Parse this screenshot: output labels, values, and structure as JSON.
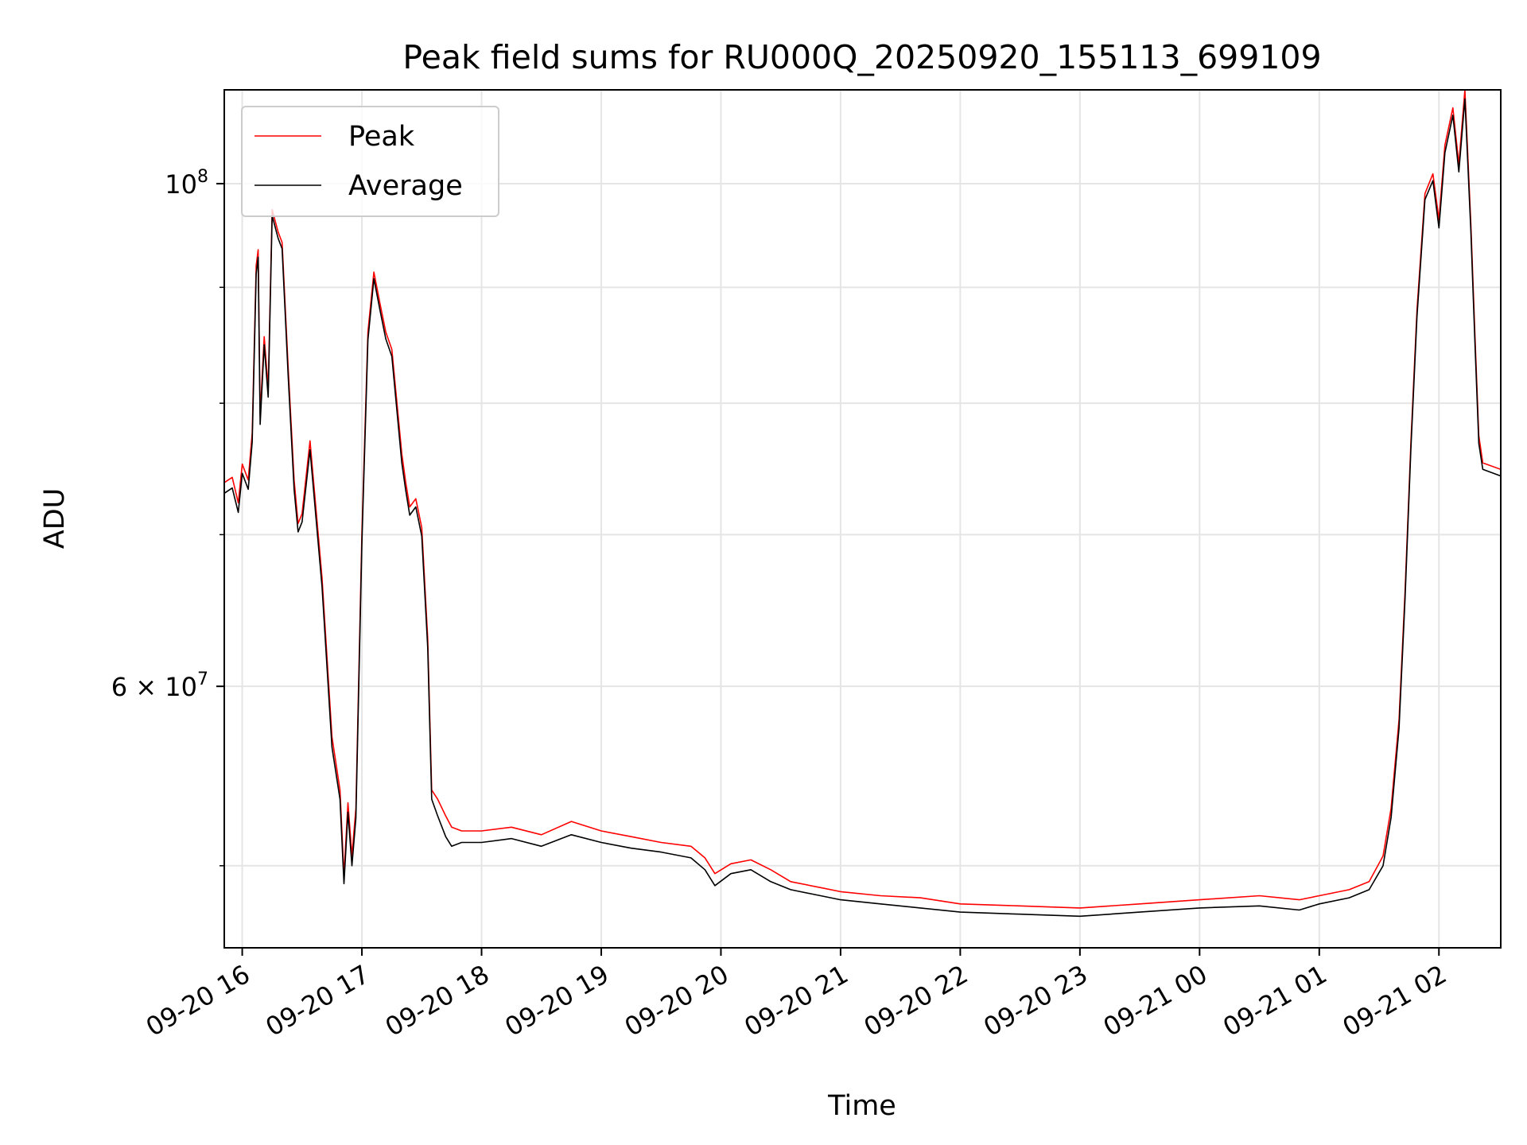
{
  "chart_data": {
    "type": "line",
    "title": "Peak field sums for RU000Q_20250920_155113_699109",
    "xlabel": "Time",
    "ylabel": "ADU",
    "x_axis": {
      "type": "time",
      "range": [
        "2025-09-20 15:51",
        "2025-09-21 02:31"
      ],
      "ticks": [
        "2025-09-20 16:00",
        "2025-09-20 17:00",
        "2025-09-20 18:00",
        "2025-09-20 19:00",
        "2025-09-20 20:00",
        "2025-09-20 21:00",
        "2025-09-20 22:00",
        "2025-09-20 23:00",
        "2025-09-21 00:00",
        "2025-09-21 01:00",
        "2025-09-21 02:00"
      ],
      "tick_labels": [
        "09-20 16",
        "09-20 17",
        "09-20 18",
        "09-20 19",
        "09-20 20",
        "09-20 21",
        "09-20 22",
        "09-20 23",
        "09-21 00",
        "09-21 01",
        "09-21 02"
      ]
    },
    "y_axis": {
      "scale": "log",
      "range": [
        46000000,
        110000000
      ],
      "major_ticks": [
        60000000,
        100000000
      ],
      "major_tick_labels": [
        {
          "mantissa": "6",
          "times": "×",
          "base": "10",
          "exp": "7"
        },
        {
          "mantissa": "",
          "times": "",
          "base": "10",
          "exp": "8"
        }
      ],
      "minor_ticks": [
        50000000,
        70000000,
        80000000,
        90000000
      ]
    },
    "grid": true,
    "legend": {
      "position": "top-left"
    },
    "series": [
      {
        "name": "Peak",
        "color": "#ff0000",
        "points": [
          [
            "2025-09-20 15:51",
            73800000
          ],
          [
            "2025-09-20 15:55",
            74200000
          ],
          [
            "2025-09-20 15:58",
            72300000
          ],
          [
            "2025-09-20 16:00",
            75200000
          ],
          [
            "2025-09-20 16:03",
            74000000
          ],
          [
            "2025-09-20 16:05",
            77600000
          ],
          [
            "2025-09-20 16:07",
            92000000
          ],
          [
            "2025-09-20 16:08",
            93500000
          ],
          [
            "2025-09-20 16:09",
            79000000
          ],
          [
            "2025-09-20 16:11",
            85600000
          ],
          [
            "2025-09-20 16:13",
            81200000
          ],
          [
            "2025-09-20 16:15",
            97400000
          ],
          [
            "2025-09-20 16:18",
            95200000
          ],
          [
            "2025-09-20 16:20",
            94200000
          ],
          [
            "2025-09-20 16:23",
            83000000
          ],
          [
            "2025-09-20 16:26",
            74000000
          ],
          [
            "2025-09-20 16:28",
            70800000
          ],
          [
            "2025-09-20 16:30",
            71500000
          ],
          [
            "2025-09-20 16:34",
            77000000
          ],
          [
            "2025-09-20 16:40",
            67000000
          ],
          [
            "2025-09-20 16:45",
            57000000
          ],
          [
            "2025-09-20 16:49",
            54000000
          ],
          [
            "2025-09-20 16:51",
            49500000
          ],
          [
            "2025-09-20 16:53",
            53300000
          ],
          [
            "2025-09-20 16:55",
            50500000
          ],
          [
            "2025-09-20 16:57",
            53000000
          ],
          [
            "2025-09-20 17:00",
            70000000
          ],
          [
            "2025-09-20 17:03",
            86000000
          ],
          [
            "2025-09-20 17:06",
            91400000
          ],
          [
            "2025-09-20 17:09",
            88600000
          ],
          [
            "2025-09-20 17:12",
            86000000
          ],
          [
            "2025-09-20 17:15",
            84500000
          ],
          [
            "2025-09-20 17:20",
            76000000
          ],
          [
            "2025-09-20 17:22",
            73800000
          ],
          [
            "2025-09-20 17:24",
            72000000
          ],
          [
            "2025-09-20 17:27",
            72600000
          ],
          [
            "2025-09-20 17:30",
            70500000
          ],
          [
            "2025-09-20 17:33",
            63000000
          ],
          [
            "2025-09-20 17:35",
            54000000
          ],
          [
            "2025-09-20 17:38",
            53500000
          ],
          [
            "2025-09-20 17:42",
            52600000
          ],
          [
            "2025-09-20 17:45",
            52000000
          ],
          [
            "2025-09-20 17:50",
            51800000
          ],
          [
            "2025-09-20 18:00",
            51800000
          ],
          [
            "2025-09-20 18:15",
            52000000
          ],
          [
            "2025-09-20 18:30",
            51600000
          ],
          [
            "2025-09-20 18:45",
            52300000
          ],
          [
            "2025-09-20 19:00",
            51800000
          ],
          [
            "2025-09-20 19:15",
            51500000
          ],
          [
            "2025-09-20 19:30",
            51200000
          ],
          [
            "2025-09-20 19:45",
            51000000
          ],
          [
            "2025-09-20 19:52",
            50400000
          ],
          [
            "2025-09-20 19:57",
            49600000
          ],
          [
            "2025-09-20 20:05",
            50100000
          ],
          [
            "2025-09-20 20:15",
            50300000
          ],
          [
            "2025-09-20 20:25",
            49800000
          ],
          [
            "2025-09-20 20:35",
            49200000
          ],
          [
            "2025-09-20 20:50",
            48900000
          ],
          [
            "2025-09-20 21:00",
            48700000
          ],
          [
            "2025-09-20 21:20",
            48500000
          ],
          [
            "2025-09-20 21:40",
            48400000
          ],
          [
            "2025-09-20 22:00",
            48100000
          ],
          [
            "2025-09-20 22:30",
            48000000
          ],
          [
            "2025-09-20 23:00",
            47900000
          ],
          [
            "2025-09-20 23:30",
            48100000
          ],
          [
            "2025-09-21 00:00",
            48300000
          ],
          [
            "2025-09-21 00:30",
            48500000
          ],
          [
            "2025-09-21 00:50",
            48300000
          ],
          [
            "2025-09-21 01:00",
            48500000
          ],
          [
            "2025-09-21 01:15",
            48800000
          ],
          [
            "2025-09-21 01:25",
            49200000
          ],
          [
            "2025-09-21 01:32",
            50500000
          ],
          [
            "2025-09-21 01:36",
            53000000
          ],
          [
            "2025-09-21 01:40",
            58000000
          ],
          [
            "2025-09-21 01:43",
            66000000
          ],
          [
            "2025-09-21 01:46",
            77000000
          ],
          [
            "2025-09-21 01:49",
            88000000
          ],
          [
            "2025-09-21 01:53",
            99000000
          ],
          [
            "2025-09-21 01:57",
            101000000
          ],
          [
            "2025-09-21 02:00",
            96400000
          ],
          [
            "2025-09-21 02:03",
            104000000
          ],
          [
            "2025-09-21 02:07",
            108000000
          ],
          [
            "2025-09-21 02:10",
            102000000
          ],
          [
            "2025-09-21 02:13",
            110000000
          ],
          [
            "2025-09-21 02:16",
            96000000
          ],
          [
            "2025-09-21 02:18",
            86000000
          ],
          [
            "2025-09-21 02:20",
            77400000
          ],
          [
            "2025-09-21 02:22",
            75300000
          ],
          [
            "2025-09-21 02:31",
            74800000
          ]
        ]
      },
      {
        "name": "Average",
        "color": "#000000",
        "points": [
          [
            "2025-09-20 15:51",
            73000000
          ],
          [
            "2025-09-20 15:55",
            73400000
          ],
          [
            "2025-09-20 15:58",
            71600000
          ],
          [
            "2025-09-20 16:00",
            74500000
          ],
          [
            "2025-09-20 16:03",
            73300000
          ],
          [
            "2025-09-20 16:05",
            76900000
          ],
          [
            "2025-09-20 16:07",
            91200000
          ],
          [
            "2025-09-20 16:08",
            92800000
          ],
          [
            "2025-09-20 16:09",
            78300000
          ],
          [
            "2025-09-20 16:11",
            84900000
          ],
          [
            "2025-09-20 16:13",
            80500000
          ],
          [
            "2025-09-20 16:15",
            96800000
          ],
          [
            "2025-09-20 16:18",
            94600000
          ],
          [
            "2025-09-20 16:20",
            93600000
          ],
          [
            "2025-09-20 16:23",
            82300000
          ],
          [
            "2025-09-20 16:26",
            73300000
          ],
          [
            "2025-09-20 16:28",
            70200000
          ],
          [
            "2025-09-20 16:30",
            70900000
          ],
          [
            "2025-09-20 16:34",
            76300000
          ],
          [
            "2025-09-20 16:40",
            66400000
          ],
          [
            "2025-09-20 16:45",
            56400000
          ],
          [
            "2025-09-20 16:49",
            53500000
          ],
          [
            "2025-09-20 16:51",
            49100000
          ],
          [
            "2025-09-20 16:53",
            52800000
          ],
          [
            "2025-09-20 16:55",
            50000000
          ],
          [
            "2025-09-20 16:57",
            52500000
          ],
          [
            "2025-09-20 17:00",
            69300000
          ],
          [
            "2025-09-20 17:03",
            85300000
          ],
          [
            "2025-09-20 17:06",
            90800000
          ],
          [
            "2025-09-20 17:09",
            88000000
          ],
          [
            "2025-09-20 17:12",
            85400000
          ],
          [
            "2025-09-20 17:15",
            83900000
          ],
          [
            "2025-09-20 17:20",
            75300000
          ],
          [
            "2025-09-20 17:22",
            73200000
          ],
          [
            "2025-09-20 17:24",
            71400000
          ],
          [
            "2025-09-20 17:27",
            72000000
          ],
          [
            "2025-09-20 17:30",
            69900000
          ],
          [
            "2025-09-20 17:33",
            62400000
          ],
          [
            "2025-09-20 17:35",
            53500000
          ],
          [
            "2025-09-20 17:38",
            52600000
          ],
          [
            "2025-09-20 17:42",
            51500000
          ],
          [
            "2025-09-20 17:45",
            51000000
          ],
          [
            "2025-09-20 17:50",
            51200000
          ],
          [
            "2025-09-20 18:00",
            51200000
          ],
          [
            "2025-09-20 18:15",
            51400000
          ],
          [
            "2025-09-20 18:30",
            51000000
          ],
          [
            "2025-09-20 18:45",
            51600000
          ],
          [
            "2025-09-20 19:00",
            51200000
          ],
          [
            "2025-09-20 19:15",
            50900000
          ],
          [
            "2025-09-20 19:30",
            50700000
          ],
          [
            "2025-09-20 19:45",
            50400000
          ],
          [
            "2025-09-20 19:52",
            49800000
          ],
          [
            "2025-09-20 19:57",
            49000000
          ],
          [
            "2025-09-20 20:05",
            49600000
          ],
          [
            "2025-09-20 20:15",
            49800000
          ],
          [
            "2025-09-20 20:25",
            49200000
          ],
          [
            "2025-09-20 20:35",
            48800000
          ],
          [
            "2025-09-20 20:50",
            48500000
          ],
          [
            "2025-09-20 21:00",
            48300000
          ],
          [
            "2025-09-20 21:20",
            48100000
          ],
          [
            "2025-09-20 21:40",
            47900000
          ],
          [
            "2025-09-20 22:00",
            47700000
          ],
          [
            "2025-09-20 22:30",
            47600000
          ],
          [
            "2025-09-20 23:00",
            47500000
          ],
          [
            "2025-09-20 23:30",
            47700000
          ],
          [
            "2025-09-21 00:00",
            47900000
          ],
          [
            "2025-09-21 00:30",
            48000000
          ],
          [
            "2025-09-21 00:50",
            47800000
          ],
          [
            "2025-09-21 01:00",
            48100000
          ],
          [
            "2025-09-21 01:15",
            48400000
          ],
          [
            "2025-09-21 01:25",
            48800000
          ],
          [
            "2025-09-21 01:32",
            50000000
          ],
          [
            "2025-09-21 01:36",
            52500000
          ],
          [
            "2025-09-21 01:40",
            57500000
          ],
          [
            "2025-09-21 01:43",
            65500000
          ],
          [
            "2025-09-21 01:46",
            76500000
          ],
          [
            "2025-09-21 01:49",
            87400000
          ],
          [
            "2025-09-21 01:53",
            98400000
          ],
          [
            "2025-09-21 01:57",
            100300000
          ],
          [
            "2025-09-21 02:00",
            95600000
          ],
          [
            "2025-09-21 02:03",
            103200000
          ],
          [
            "2025-09-21 02:07",
            107200000
          ],
          [
            "2025-09-21 02:10",
            101200000
          ],
          [
            "2025-09-21 02:13",
            109000000
          ],
          [
            "2025-09-21 02:16",
            95300000
          ],
          [
            "2025-09-21 02:18",
            85300000
          ],
          [
            "2025-09-21 02:20",
            76800000
          ],
          [
            "2025-09-21 02:22",
            74800000
          ],
          [
            "2025-09-21 02:31",
            74300000
          ]
        ]
      }
    ]
  }
}
